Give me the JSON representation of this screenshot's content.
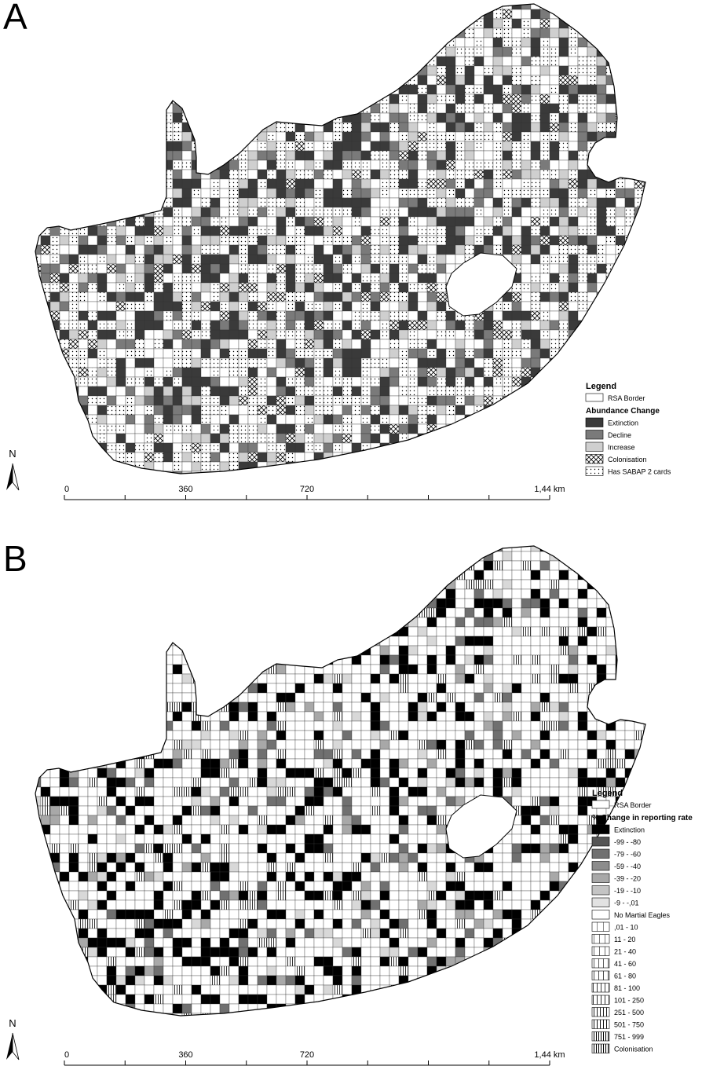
{
  "panels": [
    {
      "label": "A",
      "legend": {
        "title": "Legend",
        "border_label": "RSA Border",
        "subtitle": "Abundance Change",
        "items": [
          {
            "label": "Extinction",
            "fill": "#3a3a3a",
            "pattern": "solid"
          },
          {
            "label": "Decline",
            "fill": "#7a7a7a",
            "pattern": "solid"
          },
          {
            "label": "Increase",
            "fill": "#cfcfcf",
            "pattern": "solid"
          },
          {
            "label": "Colonisation",
            "fill": "#ffffff",
            "pattern": "crosshatch"
          },
          {
            "label": "Has SABAP 2 cards",
            "fill": "#ffffff",
            "pattern": "dots"
          }
        ]
      },
      "scale": [
        "0",
        "360",
        "720",
        "1,44 km"
      ],
      "north": "N"
    },
    {
      "label": "B",
      "legend": {
        "title": "Legend",
        "border_label": "RSA Border",
        "subtitle": "% Change in reporting rate",
        "items": [
          {
            "label": "Extinction",
            "fill": "#000000",
            "pattern": "solid"
          },
          {
            "label": "-99 - -80",
            "fill": "#555555",
            "pattern": "solid"
          },
          {
            "label": "-79 - -60",
            "fill": "#707070",
            "pattern": "solid"
          },
          {
            "label": "-59 - -40",
            "fill": "#8c8c8c",
            "pattern": "solid"
          },
          {
            "label": "-39 - -20",
            "fill": "#a8a8a8",
            "pattern": "solid"
          },
          {
            "label": "-19 - -10",
            "fill": "#c4c4c4",
            "pattern": "solid"
          },
          {
            "label": "-9 - -,01",
            "fill": "#e2e2e2",
            "pattern": "solid"
          },
          {
            "label": "No Martial Eagles",
            "fill": "#ffffff",
            "pattern": "solid"
          },
          {
            "label": ",01 - 10",
            "fill": "#ffffff",
            "pattern": "lines1"
          },
          {
            "label": "11 - 20",
            "fill": "#ffffff",
            "pattern": "lines2"
          },
          {
            "label": "21 - 40",
            "fill": "#ffffff",
            "pattern": "lines3"
          },
          {
            "label": "41 - 60",
            "fill": "#ffffff",
            "pattern": "lines4"
          },
          {
            "label": "61 - 80",
            "fill": "#ffffff",
            "pattern": "lines5"
          },
          {
            "label": "81 - 100",
            "fill": "#ffffff",
            "pattern": "lines6"
          },
          {
            "label": "101 - 250",
            "fill": "#ffffff",
            "pattern": "lines7"
          },
          {
            "label": "251 - 500",
            "fill": "#ffffff",
            "pattern": "lines8"
          },
          {
            "label": "501 - 750",
            "fill": "#ffffff",
            "pattern": "lines9"
          },
          {
            "label": "751 - 999",
            "fill": "#ffffff",
            "pattern": "lines10"
          },
          {
            "label": "Colonisation",
            "fill": "#ffffff",
            "pattern": "lines11"
          }
        ]
      },
      "scale": [
        "0",
        "360",
        "720",
        "1,44 km"
      ],
      "north": "N"
    }
  ]
}
